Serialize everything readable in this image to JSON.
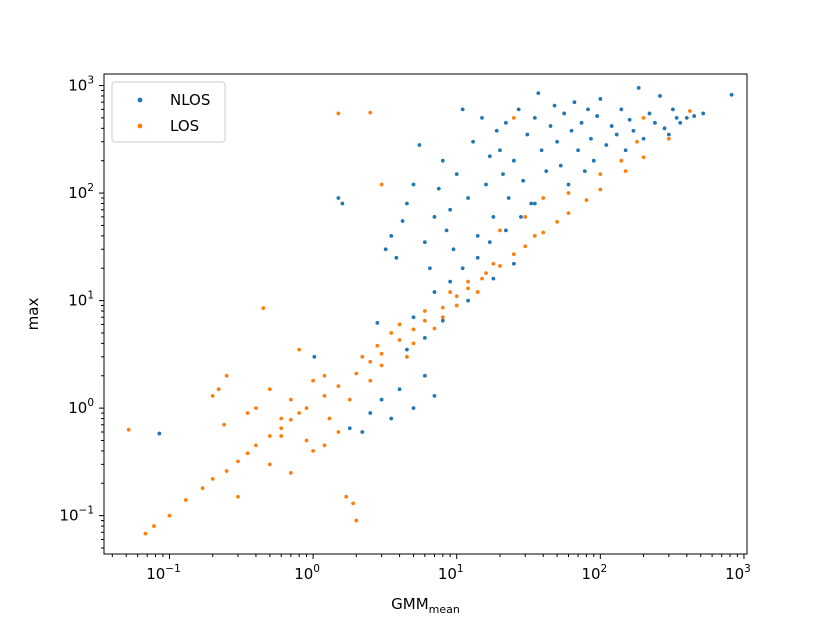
{
  "chart_data": {
    "type": "scatter",
    "title": "",
    "xlabel": "GMM",
    "xlabel_sub": "mean",
    "ylabel": "max",
    "xscale": "log",
    "yscale": "log",
    "xlim": [
      0.035,
      1050
    ],
    "ylim": [
      0.044,
      1280
    ],
    "x_ticks": [
      {
        "value": 0.1,
        "base": "10",
        "exp": "−1"
      },
      {
        "value": 1,
        "base": "10",
        "exp": "0"
      },
      {
        "value": 10,
        "base": "10",
        "exp": "1"
      },
      {
        "value": 100,
        "base": "10",
        "exp": "2"
      },
      {
        "value": 1000,
        "base": "10",
        "exp": "3"
      }
    ],
    "y_ticks": [
      {
        "value": 0.1,
        "base": "10",
        "exp": "−1"
      },
      {
        "value": 1,
        "base": "10",
        "exp": "0"
      },
      {
        "value": 10,
        "base": "10",
        "exp": "1"
      },
      {
        "value": 100,
        "base": "10",
        "exp": "2"
      },
      {
        "value": 1000,
        "base": "10",
        "exp": "3"
      }
    ],
    "grid": false,
    "legend_position": "top-left",
    "series": [
      {
        "name": "NLOS",
        "color": "#1f77b4",
        "points": [
          [
            0.085,
            0.58
          ],
          [
            1.02,
            3.0
          ],
          [
            1.5,
            90
          ],
          [
            1.6,
            80
          ],
          [
            2.8,
            6.2
          ],
          [
            3.2,
            30
          ],
          [
            3.5,
            40
          ],
          [
            3.8,
            25
          ],
          [
            4.2,
            55
          ],
          [
            4.5,
            80
          ],
          [
            5.0,
            120
          ],
          [
            5.5,
            280
          ],
          [
            6.0,
            35
          ],
          [
            6.5,
            20
          ],
          [
            7.0,
            60
          ],
          [
            7.5,
            110
          ],
          [
            8.0,
            200
          ],
          [
            8.5,
            45
          ],
          [
            9.0,
            70
          ],
          [
            9.5,
            30
          ],
          [
            10,
            150
          ],
          [
            11,
            600
          ],
          [
            12,
            90
          ],
          [
            13,
            300
          ],
          [
            14,
            40
          ],
          [
            15,
            500
          ],
          [
            16,
            120
          ],
          [
            17,
            220
          ],
          [
            18,
            60
          ],
          [
            19,
            380
          ],
          [
            20,
            250
          ],
          [
            21,
            150
          ],
          [
            22,
            450
          ],
          [
            23,
            90
          ],
          [
            25,
            200
          ],
          [
            27,
            600
          ],
          [
            29,
            130
          ],
          [
            31,
            350
          ],
          [
            33,
            80
          ],
          [
            35,
            500
          ],
          [
            37,
            850
          ],
          [
            39,
            250
          ],
          [
            42,
            160
          ],
          [
            45,
            420
          ],
          [
            48,
            650
          ],
          [
            50,
            300
          ],
          [
            53,
            180
          ],
          [
            56,
            550
          ],
          [
            60,
            120
          ],
          [
            63,
            380
          ],
          [
            66,
            700
          ],
          [
            70,
            250
          ],
          [
            74,
            450
          ],
          [
            78,
            160
          ],
          [
            82,
            600
          ],
          [
            86,
            320
          ],
          [
            90,
            200
          ],
          [
            95,
            520
          ],
          [
            100,
            750
          ],
          [
            110,
            280
          ],
          [
            120,
            420
          ],
          [
            130,
            350
          ],
          [
            140,
            600
          ],
          [
            150,
            250
          ],
          [
            160,
            480
          ],
          [
            170,
            380
          ],
          [
            185,
            950
          ],
          [
            200,
            320
          ],
          [
            220,
            550
          ],
          [
            240,
            450
          ],
          [
            260,
            800
          ],
          [
            280,
            400
          ],
          [
            300,
            350
          ],
          [
            320,
            600
          ],
          [
            340,
            500
          ],
          [
            360,
            450
          ],
          [
            400,
            500
          ],
          [
            450,
            520
          ],
          [
            520,
            550
          ],
          [
            820,
            820
          ],
          [
            3.0,
            1.2
          ],
          [
            3.5,
            0.8
          ],
          [
            4.0,
            1.5
          ],
          [
            5.0,
            1.0
          ],
          [
            6.0,
            2.0
          ],
          [
            7.0,
            1.3
          ],
          [
            2.5,
            0.9
          ],
          [
            2.2,
            0.6
          ],
          [
            1.8,
            0.65
          ],
          [
            4.5,
            3.5
          ],
          [
            6.0,
            4.5
          ],
          [
            8.0,
            6.5
          ],
          [
            12,
            10
          ],
          [
            18,
            16
          ],
          [
            25,
            22
          ],
          [
            5.0,
            7.0
          ],
          [
            7.0,
            12
          ],
          [
            9.0,
            15
          ],
          [
            11,
            20
          ],
          [
            14,
            25
          ],
          [
            17,
            35
          ],
          [
            22,
            45
          ],
          [
            28,
            60
          ],
          [
            35,
            80
          ]
        ]
      },
      {
        "name": "LOS",
        "color": "#ff7f0e",
        "points": [
          [
            0.052,
            0.63
          ],
          [
            0.068,
            0.068
          ],
          [
            0.078,
            0.08
          ],
          [
            0.1,
            0.1
          ],
          [
            0.13,
            0.14
          ],
          [
            0.17,
            0.18
          ],
          [
            0.2,
            0.22
          ],
          [
            0.25,
            0.26
          ],
          [
            0.3,
            0.32
          ],
          [
            0.35,
            0.38
          ],
          [
            0.4,
            0.45
          ],
          [
            0.5,
            0.55
          ],
          [
            0.6,
            0.65
          ],
          [
            0.7,
            0.78
          ],
          [
            0.8,
            0.9
          ],
          [
            0.9,
            1.0
          ],
          [
            1.2,
            1.3
          ],
          [
            1.5,
            1.6
          ],
          [
            2.0,
            2.1
          ],
          [
            2.5,
            2.7
          ],
          [
            3.0,
            3.2
          ],
          [
            4.0,
            4.3
          ],
          [
            5.0,
            5.4
          ],
          [
            6.0,
            6.5
          ],
          [
            8.0,
            8.6
          ],
          [
            10,
            11
          ],
          [
            12,
            13
          ],
          [
            15,
            16
          ],
          [
            20,
            21
          ],
          [
            25,
            27
          ],
          [
            30,
            32
          ],
          [
            40,
            43
          ],
          [
            50,
            54
          ],
          [
            60,
            65
          ],
          [
            80,
            86
          ],
          [
            100,
            108
          ],
          [
            150,
            160
          ],
          [
            200,
            215
          ],
          [
            300,
            320
          ],
          [
            420,
            580
          ],
          [
            0.2,
            1.3
          ],
          [
            0.22,
            1.5
          ],
          [
            0.24,
            0.7
          ],
          [
            0.25,
            2.0
          ],
          [
            0.35,
            0.9
          ],
          [
            0.4,
            1.0
          ],
          [
            0.45,
            8.5
          ],
          [
            0.5,
            1.5
          ],
          [
            0.6,
            0.55
          ],
          [
            0.7,
            0.25
          ],
          [
            0.8,
            3.5
          ],
          [
            0.9,
            0.5
          ],
          [
            1.0,
            0.4
          ],
          [
            1.2,
            2.0
          ],
          [
            1.5,
            0.6
          ],
          [
            1.7,
            0.15
          ],
          [
            1.9,
            0.13
          ],
          [
            2.0,
            0.09
          ],
          [
            1.5,
            550
          ],
          [
            2.5,
            560
          ],
          [
            3.0,
            120
          ],
          [
            2.2,
            3.0
          ],
          [
            2.5,
            1.8
          ],
          [
            3.0,
            2.5
          ],
          [
            3.5,
            5.0
          ],
          [
            4.0,
            6.0
          ],
          [
            4.5,
            3.0
          ],
          [
            5.0,
            4.0
          ],
          [
            6.0,
            8.0
          ],
          [
            7.0,
            5.5
          ],
          [
            8.0,
            7.0
          ],
          [
            9.0,
            12
          ],
          [
            10,
            9.0
          ],
          [
            12,
            15
          ],
          [
            14,
            12
          ],
          [
            16,
            18
          ],
          [
            18,
            22
          ],
          [
            20,
            45
          ],
          [
            25,
            500
          ],
          [
            30,
            60
          ],
          [
            35,
            40
          ],
          [
            40,
            90
          ],
          [
            60,
            100
          ],
          [
            100,
            150
          ],
          [
            140,
            200
          ],
          [
            200,
            500
          ],
          [
            180,
            300
          ],
          [
            1.2,
            0.45
          ],
          [
            0.3,
            0.15
          ],
          [
            0.5,
            0.3
          ],
          [
            0.6,
            0.8
          ],
          [
            0.7,
            1.2
          ],
          [
            1.0,
            1.8
          ],
          [
            1.3,
            0.8
          ],
          [
            1.8,
            1.2
          ],
          [
            2.8,
            3.8
          ]
        ]
      }
    ]
  }
}
